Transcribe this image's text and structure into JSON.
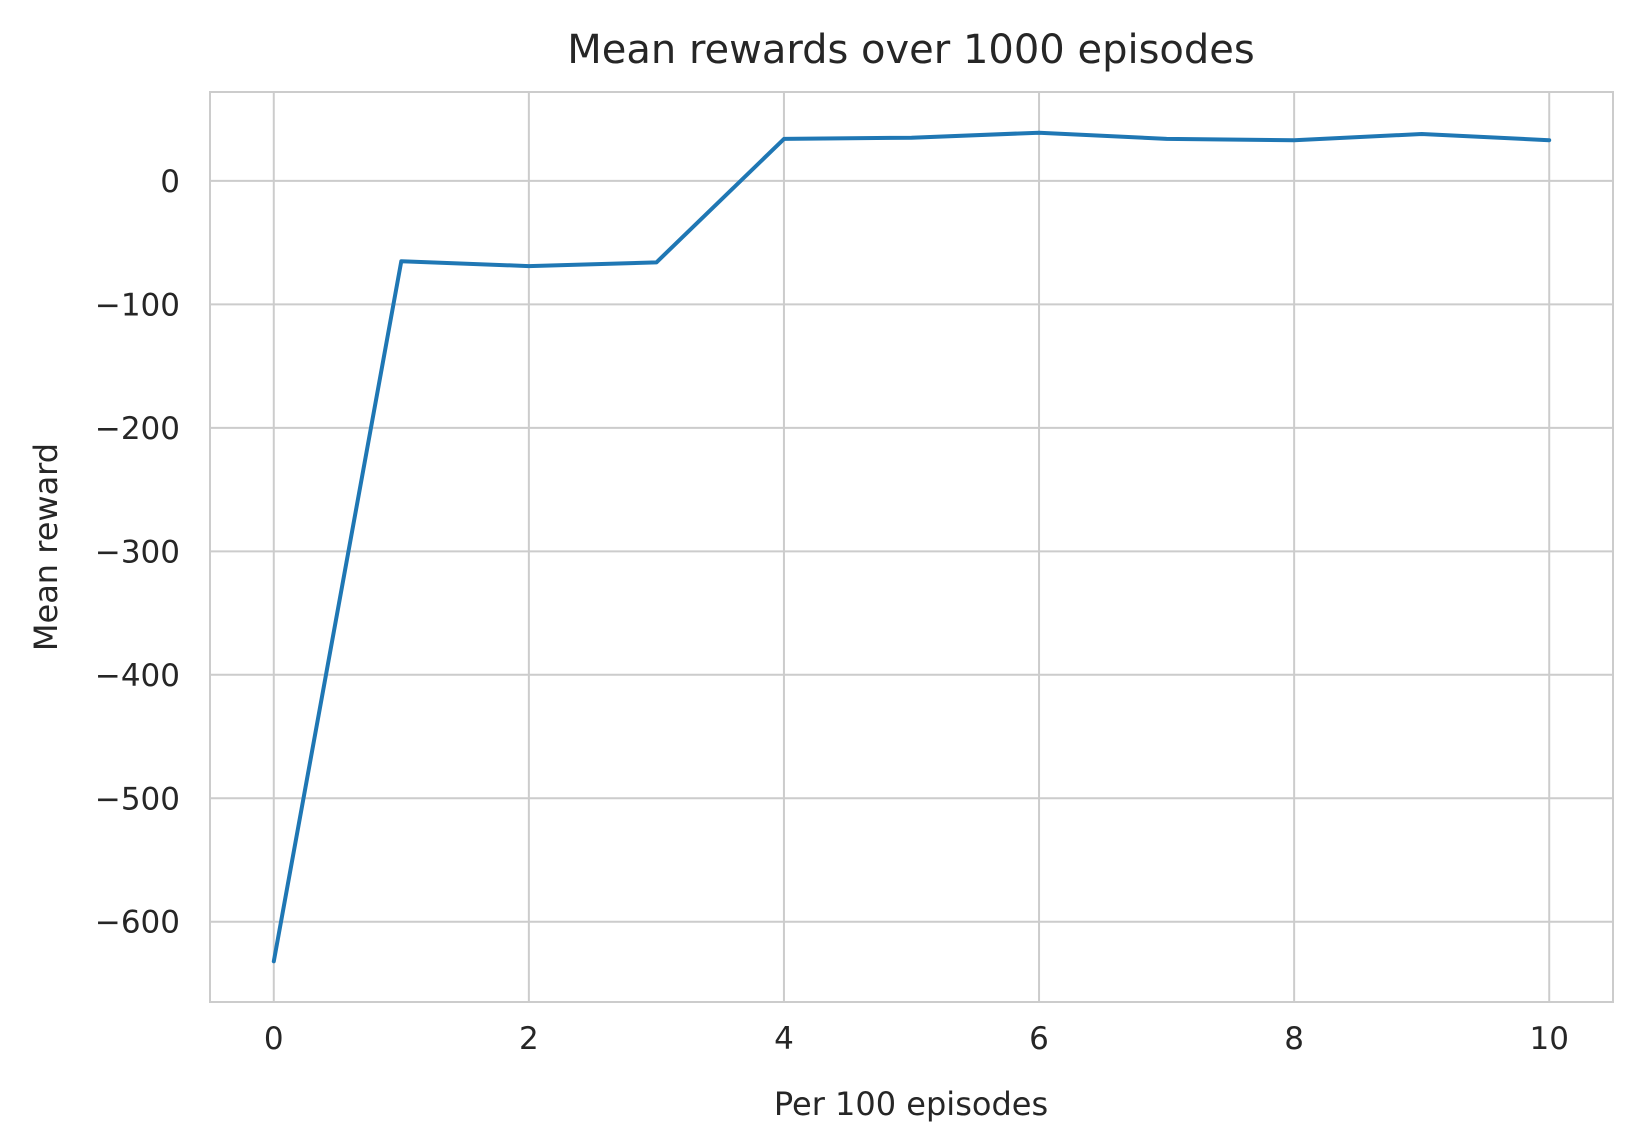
{
  "chart_data": {
    "type": "line",
    "title": "Mean rewards over 1000 episodes",
    "xlabel": "Per 100 episodes",
    "ylabel": "Mean reward",
    "xlim": [
      -0.5,
      10.5
    ],
    "ylim": [
      -665,
      72
    ],
    "xticks": [
      0,
      2,
      4,
      6,
      8,
      10
    ],
    "xtick_labels": [
      "0",
      "2",
      "4",
      "6",
      "8",
      "10"
    ],
    "yticks": [
      0,
      -100,
      -200,
      -300,
      -400,
      -500,
      -600
    ],
    "ytick_labels": [
      "0",
      "−100",
      "−200",
      "−300",
      "−400",
      "−500",
      "−600"
    ],
    "grid": true,
    "legend": false,
    "series": [
      {
        "color": "#1f77b4",
        "x": [
          0,
          1,
          2,
          3,
          4,
          5,
          6,
          7,
          8,
          9,
          10
        ],
        "y": [
          -632,
          -65,
          -69,
          -66,
          34,
          35,
          39,
          34,
          33,
          38,
          33
        ]
      }
    ]
  }
}
